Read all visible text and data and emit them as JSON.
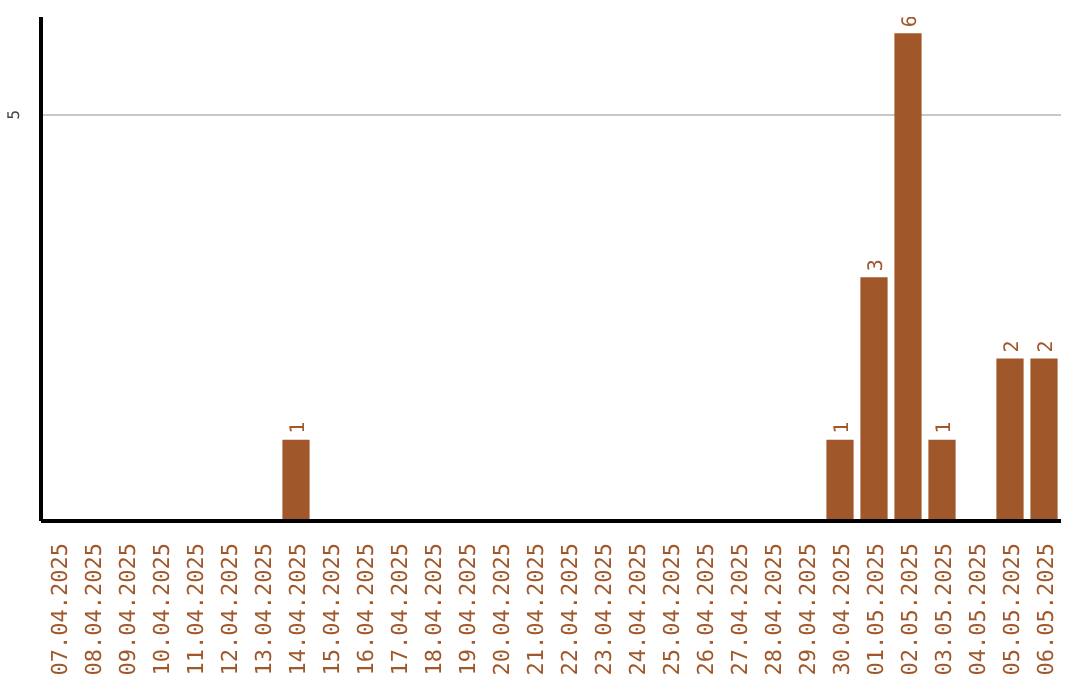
{
  "chart_data": {
    "type": "bar",
    "categories": [
      "07.04.2025",
      "08.04.2025",
      "09.04.2025",
      "10.04.2025",
      "11.04.2025",
      "12.04.2025",
      "13.04.2025",
      "14.04.2025",
      "15.04.2025",
      "16.04.2025",
      "17.04.2025",
      "18.04.2025",
      "19.04.2025",
      "20.04.2025",
      "21.04.2025",
      "22.04.2025",
      "23.04.2025",
      "24.04.2025",
      "25.04.2025",
      "26.04.2025",
      "27.04.2025",
      "28.04.2025",
      "29.04.2025",
      "30.04.2025",
      "01.05.2025",
      "02.05.2025",
      "03.05.2025",
      "04.05.2025",
      "05.05.2025",
      "06.05.2025"
    ],
    "values": [
      0,
      0,
      0,
      0,
      0,
      0,
      0,
      1,
      0,
      0,
      0,
      0,
      0,
      0,
      0,
      0,
      0,
      0,
      0,
      0,
      0,
      0,
      0,
      1,
      3,
      6,
      1,
      0,
      2,
      2
    ],
    "value_labels": [
      null,
      null,
      null,
      null,
      null,
      null,
      null,
      "1",
      null,
      null,
      null,
      null,
      null,
      null,
      null,
      null,
      null,
      null,
      null,
      null,
      null,
      null,
      null,
      "1",
      "3",
      "6",
      "1",
      null,
      "2",
      "2"
    ],
    "color": "#a0572a",
    "ylim": [
      0,
      6.2
    ],
    "yticks": [
      5
    ],
    "grid": "y"
  }
}
